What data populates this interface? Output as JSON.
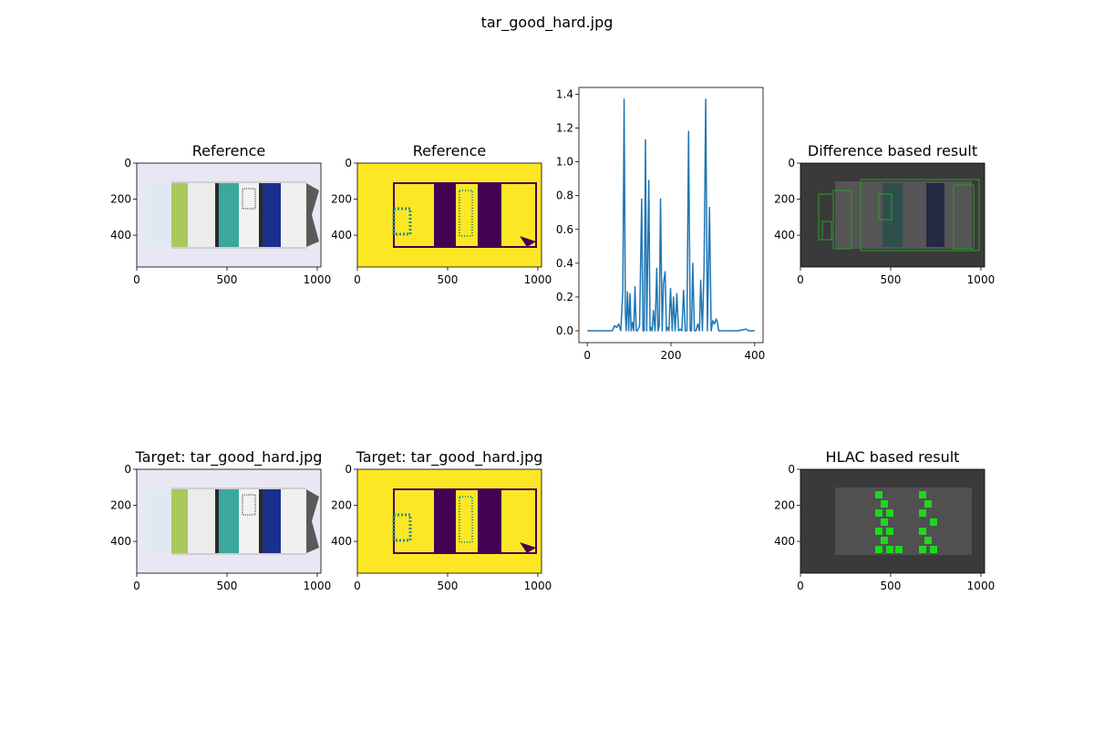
{
  "figure": {
    "suptitle": "tar_good_hard.jpg",
    "colors": {
      "line": "#1f77b4",
      "binary_high": "#fde725",
      "binary_low": "#440154",
      "edge_mid": "#21918c",
      "box_green": "#2aa02a",
      "hlac_green": "#14f014",
      "dark_bg": "#3a3a3a"
    }
  },
  "panels": [
    {
      "id": "ref-photo",
      "title": "Reference",
      "kind": "image",
      "image": "photo",
      "xticks": [
        "0",
        "500",
        "1000"
      ],
      "yticks": [
        "0",
        "200",
        "400"
      ]
    },
    {
      "id": "ref-binary",
      "title": "Reference",
      "kind": "image",
      "image": "binary",
      "xticks": [
        "0",
        "500",
        "1000"
      ],
      "yticks": [
        "0",
        "200",
        "400"
      ]
    },
    {
      "id": "diff-result",
      "title": "Difference based result",
      "kind": "image",
      "image": "diff",
      "xticks": [
        "0",
        "500",
        "1000"
      ],
      "yticks": [
        "0",
        "200",
        "400"
      ]
    },
    {
      "id": "tgt-photo",
      "title": "Target: tar_good_hard.jpg",
      "kind": "image",
      "image": "photo",
      "xticks": [
        "0",
        "500",
        "1000"
      ],
      "yticks": [
        "0",
        "200",
        "400"
      ]
    },
    {
      "id": "tgt-binary",
      "title": "Target: tar_good_hard.jpg",
      "kind": "image",
      "image": "binary",
      "xticks": [
        "0",
        "500",
        "1000"
      ],
      "yticks": [
        "0",
        "200",
        "400"
      ]
    },
    {
      "id": "hlac-result",
      "title": "HLAC based result",
      "kind": "image",
      "image": "hlac",
      "xticks": [
        "0",
        "500",
        "1000"
      ],
      "yticks": [
        "0",
        "200",
        "400"
      ]
    }
  ],
  "chart_data": {
    "type": "line",
    "title": "",
    "xlabel": "",
    "ylabel": "",
    "xlim": [
      -20,
      420
    ],
    "ylim": [
      -0.07,
      1.44
    ],
    "xticks": [
      0,
      200,
      400
    ],
    "yticks": [
      0.0,
      0.2,
      0.4,
      0.6,
      0.8,
      1.0,
      1.2,
      1.4
    ],
    "ytick_labels": [
      "0.0",
      "0.2",
      "0.4",
      "0.6",
      "0.8",
      "1.0",
      "1.2",
      "1.4"
    ],
    "xtick_labels": [
      "0",
      "200",
      "400"
    ],
    "series": [
      {
        "x": [
          0,
          60,
          65,
          70,
          75,
          80,
          85,
          88,
          91,
          93,
          96,
          99,
          102,
          105,
          108,
          111,
          114,
          117,
          120,
          125,
          130,
          133,
          136,
          139,
          142,
          147,
          150,
          152,
          155,
          158,
          162,
          166,
          169,
          172,
          175,
          179,
          182,
          186,
          189,
          192,
          195,
          199,
          203,
          206,
          210,
          214,
          218,
          222,
          226,
          230,
          234,
          238,
          242,
          246,
          249,
          252,
          256,
          260,
          264,
          268,
          271,
          275,
          279,
          283,
          287,
          292,
          296,
          300,
          304,
          308,
          311,
          314,
          318,
          322,
          326,
          330,
          334,
          340,
          360,
          380,
          385,
          390,
          400
        ],
        "values": [
          0,
          0,
          0.03,
          0.02,
          0.04,
          0.0,
          0.24,
          1.37,
          0.1,
          0.0,
          0.23,
          0.0,
          0.22,
          0.0,
          0.05,
          0.0,
          0.26,
          0.0,
          0.0,
          0.03,
          0.78,
          0.0,
          0.0,
          1.13,
          0.0,
          0.89,
          0.0,
          0.02,
          0.0,
          0.12,
          0.0,
          0.37,
          0.0,
          0.03,
          0.78,
          0.0,
          0.28,
          0.35,
          0.0,
          0.02,
          0.0,
          0.25,
          0.0,
          0.2,
          0.0,
          0.22,
          0.0,
          0.01,
          0.0,
          0.24,
          0.0,
          0.0,
          1.18,
          0.0,
          0.0,
          0.4,
          0.0,
          0.0,
          0.04,
          0.0,
          0.3,
          0.0,
          0.37,
          1.37,
          0.0,
          0.73,
          0.0,
          0.06,
          0.04,
          0.07,
          0.05,
          0.0,
          0.0,
          0.0,
          0.0,
          0.0,
          0.0,
          0.0,
          0.0,
          0.01,
          0.0,
          0.0,
          0.0
        ]
      }
    ]
  }
}
